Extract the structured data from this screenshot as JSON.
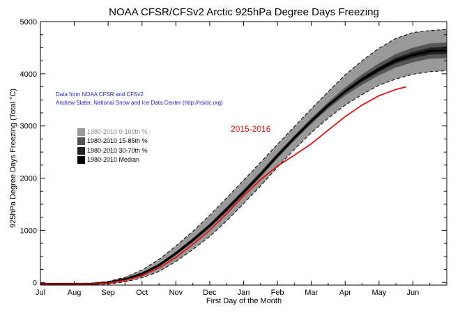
{
  "chart_data": {
    "type": "area",
    "title": "NOAA CFSR/CFSv2 Arctic 925hPa Degree Days Freezing",
    "xlabel": "First Day of the Month",
    "ylabel": "925hPa Degree Days Freezing (Total °C)",
    "x_ticks": [
      "Jul",
      "Aug",
      "Sep",
      "Oct",
      "Nov",
      "Dec",
      "Jan",
      "Feb",
      "Mar",
      "Apr",
      "May",
      "Jun"
    ],
    "y_ticks": [
      0,
      1000,
      2000,
      3000,
      4000,
      5000
    ],
    "ylim": [
      -50,
      5000
    ],
    "x_unit": "month index (0 = Jul 1)",
    "x": [
      0,
      0.5,
      1,
      1.5,
      2,
      2.5,
      3,
      3.5,
      4,
      4.5,
      5,
      5.5,
      6,
      6.5,
      7,
      7.5,
      8,
      8.5,
      9,
      9.5,
      10,
      10.5,
      11,
      11.5,
      12
    ],
    "series": [
      {
        "name": "1980-2010 0-100th %",
        "color": "#999999",
        "low": [
          -40,
          -40,
          -40,
          -38,
          -30,
          10,
          90,
          210,
          400,
          630,
          880,
          1180,
          1510,
          1850,
          2210,
          2550,
          2870,
          3150,
          3400,
          3600,
          3780,
          3900,
          3990,
          4040,
          4060
        ],
        "high": [
          -20,
          -20,
          -20,
          -15,
          20,
          100,
          240,
          440,
          700,
          980,
          1290,
          1620,
          1960,
          2300,
          2650,
          2990,
          3330,
          3660,
          3980,
          4250,
          4490,
          4680,
          4790,
          4830,
          4850
        ]
      },
      {
        "name": "1980-2010 15-85th %",
        "color": "#555555",
        "low": [
          -32,
          -32,
          -32,
          -30,
          -10,
          50,
          150,
          300,
          520,
          770,
          1040,
          1350,
          1680,
          2020,
          2380,
          2720,
          3040,
          3330,
          3580,
          3790,
          3970,
          4120,
          4220,
          4290,
          4300
        ],
        "high": [
          -28,
          -28,
          -28,
          -25,
          5,
          75,
          185,
          360,
          590,
          850,
          1130,
          1450,
          1780,
          2120,
          2480,
          2820,
          3150,
          3460,
          3740,
          3990,
          4200,
          4380,
          4500,
          4580,
          4600
        ]
      },
      {
        "name": "1980-2010 30-70th %",
        "color": "#222222",
        "low": [
          -31,
          -31,
          -31,
          -29,
          -5,
          55,
          160,
          315,
          540,
          795,
          1070,
          1380,
          1710,
          2050,
          2410,
          2750,
          3070,
          3370,
          3630,
          3850,
          4040,
          4200,
          4300,
          4370,
          4380
        ],
        "high": [
          -29,
          -29,
          -29,
          -26,
          2,
          70,
          178,
          345,
          575,
          830,
          1110,
          1425,
          1755,
          2095,
          2455,
          2795,
          3120,
          3420,
          3690,
          3930,
          4130,
          4310,
          4420,
          4500,
          4520
        ]
      },
      {
        "name": "1980-2010 Median",
        "color": "#000000",
        "values": [
          -30,
          -30,
          -30,
          -28,
          -2,
          62,
          168,
          330,
          558,
          812,
          1090,
          1402,
          1732,
          2072,
          2432,
          2772,
          3095,
          3395,
          3660,
          3890,
          4085,
          4255,
          4360,
          4435,
          4450
        ]
      },
      {
        "name": "2015-2016",
        "color": "#e01010",
        "x": [
          0,
          0.5,
          1,
          1.5,
          2,
          2.5,
          3,
          3.5,
          4,
          4.5,
          5,
          5.5,
          6,
          6.5,
          7,
          7.5,
          8,
          8.5,
          9,
          9.5,
          10,
          10.5,
          10.8
        ],
        "values": [
          -30,
          -30,
          -30,
          -28,
          -12,
          40,
          130,
          280,
          480,
          730,
          1000,
          1320,
          1660,
          1970,
          2230,
          2440,
          2660,
          2920,
          3180,
          3400,
          3580,
          3700,
          3750
        ]
      }
    ],
    "grid": false,
    "legend_position": "left"
  },
  "credits": {
    "line1": "Data from NOAA CFSR and CFSv2",
    "line2": "Andrew Slater, National Snow and Ice Data Center (http://nsidc.org)"
  },
  "legend": [
    {
      "label": "1980-2010 0-100th %",
      "color": "#999999",
      "text_color": "#888888"
    },
    {
      "label": "1980-2010 15-85th %",
      "color": "#555555",
      "text_color": "#000000"
    },
    {
      "label": "1980-2010 30-70th %",
      "color": "#222222",
      "text_color": "#000000"
    },
    {
      "label": "1980-2010 Median",
      "color": "#000000",
      "text_color": "#000000"
    }
  ],
  "season_label": "2015-2016"
}
